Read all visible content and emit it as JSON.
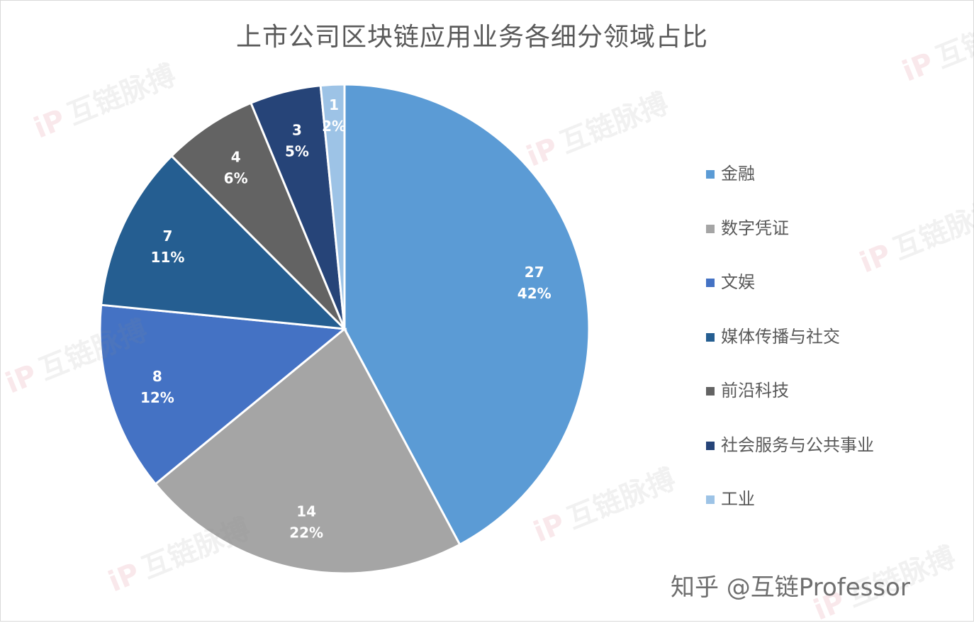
{
  "chart_data": {
    "type": "pie",
    "title": "上市公司区块链应用业务各细分领域占比",
    "categories": [
      "金融",
      "数字凭证",
      "文娱",
      "媒体传播与社交",
      "前沿科技",
      "社会服务与公共事业",
      "工业"
    ],
    "values": [
      27,
      14,
      8,
      7,
      4,
      3,
      1
    ],
    "percent_labels": [
      "42%",
      "22%",
      "12%",
      "11%",
      "6%",
      "5%",
      "2%"
    ],
    "colors": [
      "#5b9bd5",
      "#a5a5a5",
      "#4472c4",
      "#255e91",
      "#636363",
      "#264478",
      "#9dc3e6"
    ],
    "legend_position": "right"
  },
  "watermark": {
    "logo": "iP",
    "text": "互链脉搏"
  },
  "credit": "知乎 @互链Professor"
}
